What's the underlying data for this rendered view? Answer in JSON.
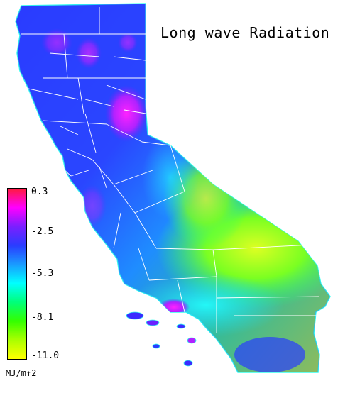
{
  "title": "Long wave Radiation",
  "legend": {
    "ticks": [
      "0.3",
      "-2.5",
      "-5.3",
      "-8.1",
      "-11.0"
    ],
    "unit": "MJ/m↑2",
    "colors": [
      "#ff1a40",
      "#ff00ff",
      "#7a1fff",
      "#2a3cff",
      "#1a9bff",
      "#00ffff",
      "#00ff7a",
      "#33ff00",
      "#aaff00",
      "#ffff00"
    ]
  },
  "colors": {
    "background": "#ffffff",
    "county_lines": "#ffffff",
    "coast_outline": "#33ffee"
  }
}
